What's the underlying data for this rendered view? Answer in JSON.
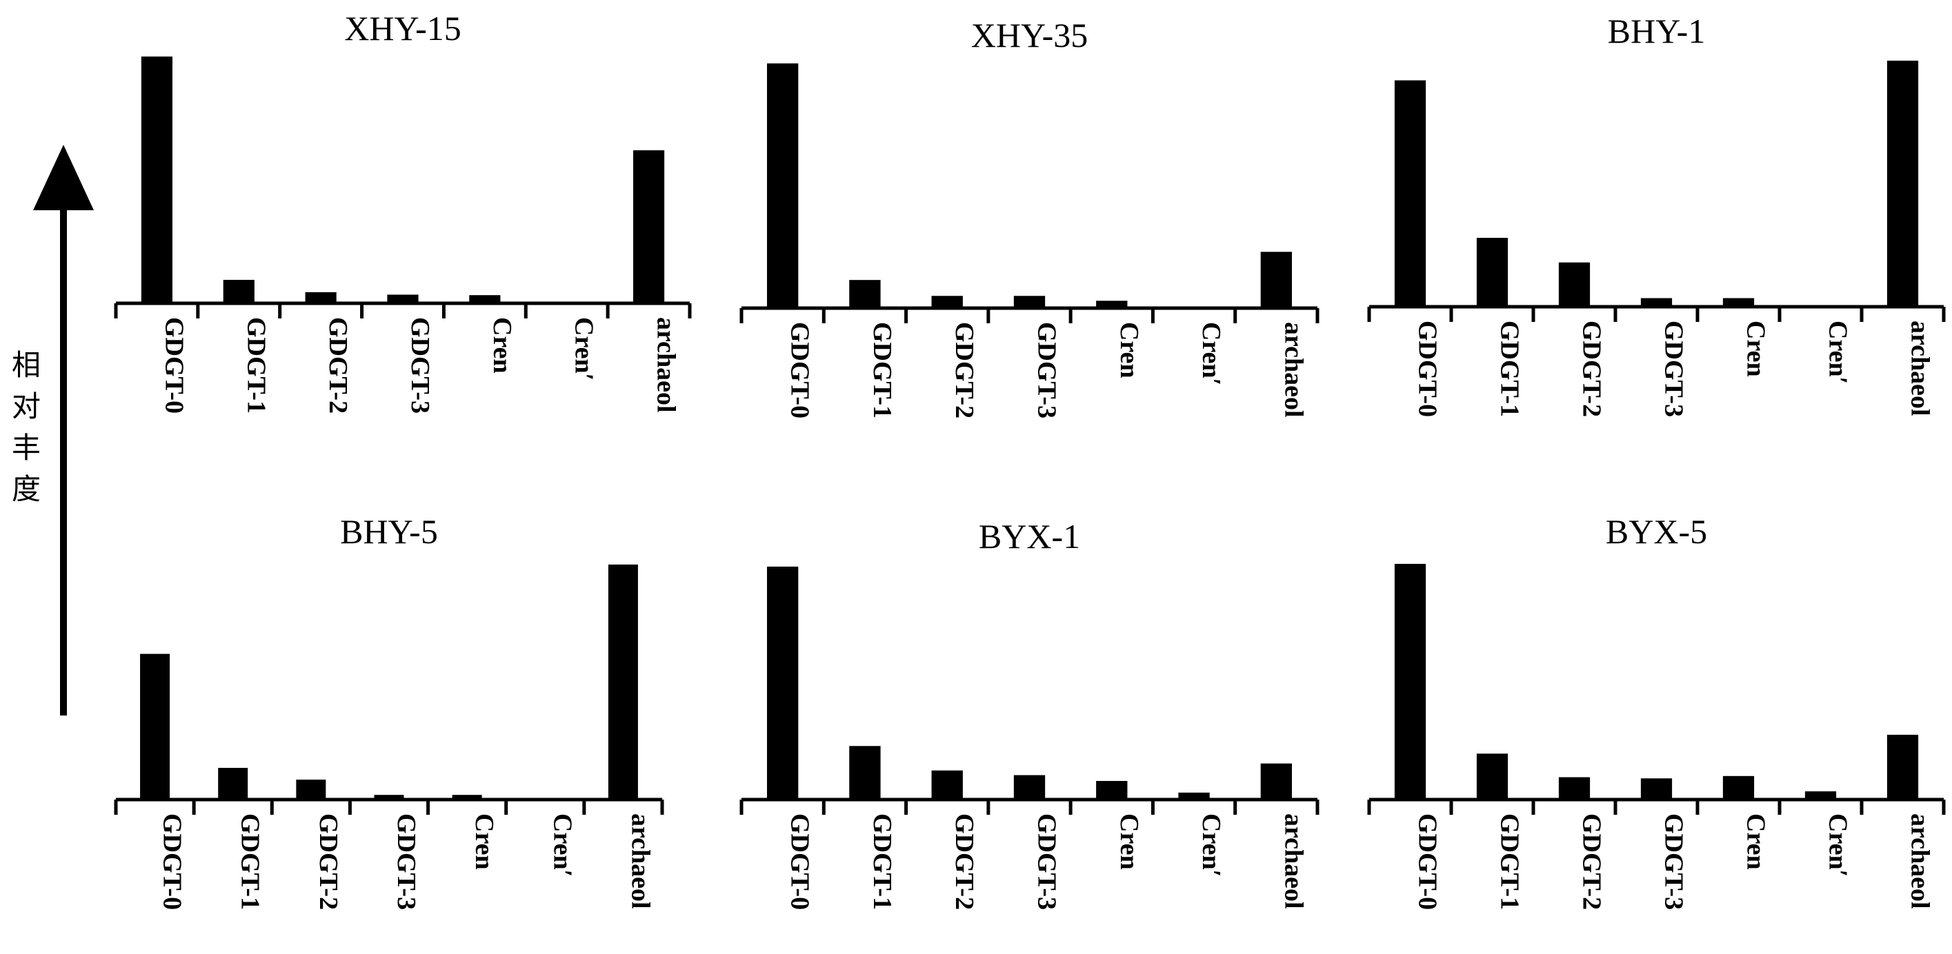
{
  "figure": {
    "ylabel_chars": [
      "相",
      "对",
      "丰",
      "度"
    ]
  },
  "chart_data": [
    {
      "type": "bar",
      "title": "XHY-15",
      "categories": [
        "GDGT-0",
        "GDGT-1",
        "GDGT-2",
        "GDGT-3",
        "Cren",
        "Cren′",
        "archaeol"
      ],
      "values": [
        100,
        9.5,
        4.5,
        3.5,
        3.3,
        0,
        62
      ],
      "ylim": [
        0,
        100
      ]
    },
    {
      "type": "bar",
      "title": "XHY-35",
      "categories": [
        "GDGT-0",
        "GDGT-1",
        "GDGT-2",
        "GDGT-3",
        "Cren",
        "Cren′",
        "archaeol"
      ],
      "values": [
        100,
        11.5,
        5,
        5,
        3,
        0,
        23
      ],
      "ylim": [
        0,
        100
      ]
    },
    {
      "type": "bar",
      "title": "BHY-1",
      "categories": [
        "GDGT-0",
        "GDGT-1",
        "GDGT-2",
        "GDGT-3",
        "Cren",
        "Cren′",
        "archaeol"
      ],
      "values": [
        92,
        28,
        18,
        3.5,
        3.5,
        0,
        100
      ],
      "ylim": [
        0,
        100
      ]
    },
    {
      "type": "bar",
      "title": "BHY-5",
      "categories": [
        "GDGT-0",
        "GDGT-1",
        "GDGT-2",
        "GDGT-3",
        "Cren",
        "Cren′",
        "archaeol"
      ],
      "values": [
        62,
        13.5,
        8.5,
        2,
        2,
        0,
        100
      ],
      "ylim": [
        0,
        100
      ]
    },
    {
      "type": "bar",
      "title": "BYX-1",
      "categories": [
        "GDGT-0",
        "GDGT-1",
        "GDGT-2",
        "GDGT-3",
        "Cren",
        "Cren′",
        "archaeol"
      ],
      "values": [
        100,
        23,
        12.5,
        10.5,
        8,
        3,
        15.5
      ],
      "ylim": [
        0,
        100
      ]
    },
    {
      "type": "bar",
      "title": "BYX-5",
      "categories": [
        "GDGT-0",
        "GDGT-1",
        "GDGT-2",
        "GDGT-3",
        "Cren",
        "Cren′",
        "archaeol"
      ],
      "values": [
        100,
        19.5,
        9.5,
        9,
        10,
        3.5,
        27.5
      ],
      "ylim": [
        0,
        100
      ]
    }
  ]
}
